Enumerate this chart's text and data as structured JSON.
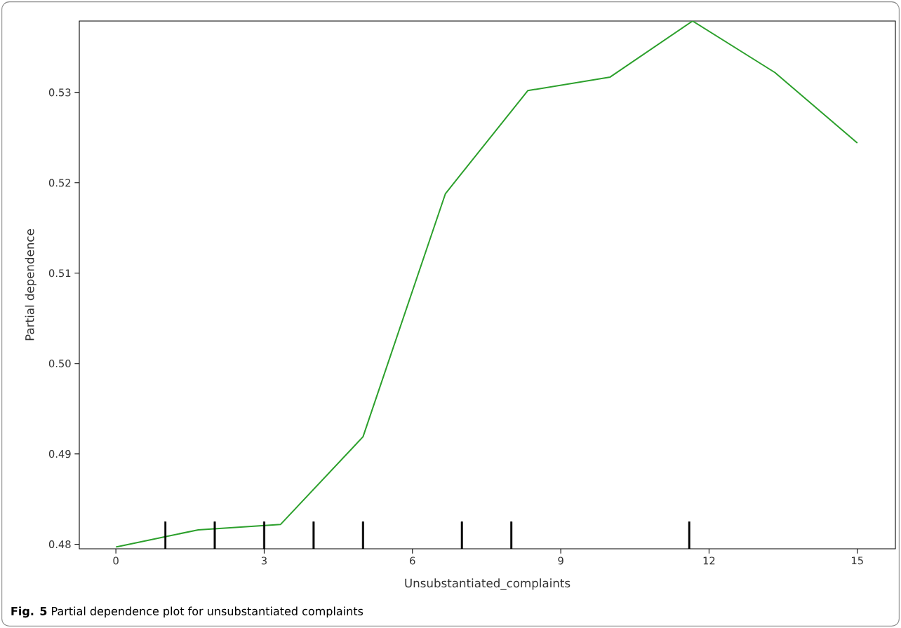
{
  "chart_data": {
    "type": "line",
    "xlabel": "Unsubstantiated_complaints",
    "ylabel": "Partial dependence",
    "annotations": [
      "**Fig. 5** Partial dependence plot for unsubstantiated complaints"
    ],
    "series": [
      {
        "color": "#2ca02c",
        "x": [
          0,
          1.667,
          3.333,
          5,
          6.667,
          8.333,
          10,
          11.667,
          13.333,
          15
        ],
        "values": [
          0.4797,
          0.4816,
          0.4822,
          0.4919,
          0.5188,
          0.5302,
          0.5317,
          0.5379,
          0.5322,
          0.5244
        ]
      },
      {
        "type": "bar",
        "color": "#000000",
        "x": [
          1,
          2,
          3,
          4,
          5,
          7,
          8,
          11.6
        ],
        "values": [
          0.4825,
          0.4825,
          0.4825,
          0.4825,
          0.4825,
          0.4825,
          0.4825,
          0.4825
        ]
      }
    ],
    "xlim": [
      -0.74,
      15.77
    ],
    "ylim": [
      0.4795,
      0.5379
    ],
    "xticks": [
      0,
      3,
      6,
      9,
      12,
      15
    ],
    "yticks": [
      0.48,
      0.49,
      {
        "value": 0.5,
        "label": "0.50"
      },
      0.51,
      0.52,
      0.53
    ],
    "grid": false
  }
}
